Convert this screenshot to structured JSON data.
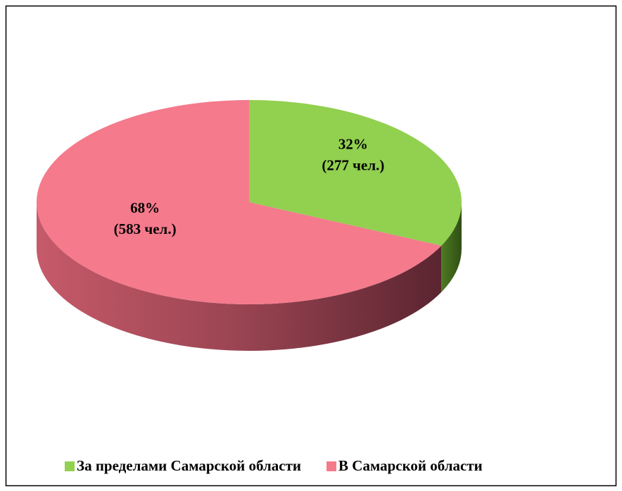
{
  "chart_data": {
    "type": "pie",
    "categories": [
      "За пределами Самарской области",
      "В Самарской области"
    ],
    "values": [
      32,
      68
    ],
    "value_labels": [
      "32%",
      "68%"
    ],
    "count_labels": [
      "(277 чел.)",
      "(583 чел.)"
    ],
    "colors": [
      "#92d050",
      "#f47a8c"
    ],
    "legend": "bottom"
  }
}
